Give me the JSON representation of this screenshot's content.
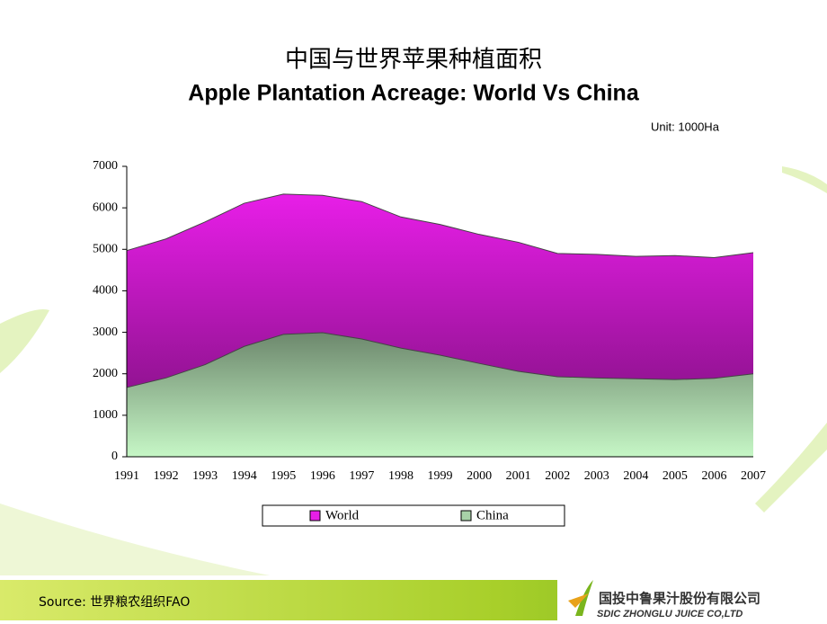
{
  "chart_data": {
    "type": "area",
    "title": "中国与世界苹果种植面积",
    "subtitle": "Apple Plantation Acreage: World Vs China",
    "unit_note": "Unit:  1000Ha",
    "categories": [
      "1991",
      "1992",
      "1993",
      "1994",
      "1995",
      "1996",
      "1997",
      "1998",
      "1999",
      "2000",
      "2001",
      "2002",
      "2003",
      "2004",
      "2005",
      "2006",
      "2007"
    ],
    "series": [
      {
        "name": "World",
        "color": "#e81ee8",
        "values": [
          4970,
          5250,
          5660,
          6110,
          6330,
          6300,
          6150,
          5780,
          5600,
          5360,
          5170,
          4900,
          4880,
          4830,
          4850,
          4800,
          4920
        ]
      },
      {
        "name": "China",
        "color": "#c6f7c6",
        "values": [
          1670,
          1900,
          2220,
          2660,
          2950,
          2990,
          2840,
          2620,
          2450,
          2250,
          2060,
          1930,
          1900,
          1880,
          1860,
          1890,
          2000
        ]
      }
    ],
    "ylim": [
      0,
      7000
    ],
    "yticks": [
      0,
      1000,
      2000,
      3000,
      4000,
      5000,
      6000,
      7000
    ]
  },
  "slide": {
    "source": "Source:  世界粮农组织FAO",
    "company_cn": "国投中鲁果汁股份有限公司",
    "company_en": "SDIC ZHONGLU JUICE CO,LTD"
  }
}
